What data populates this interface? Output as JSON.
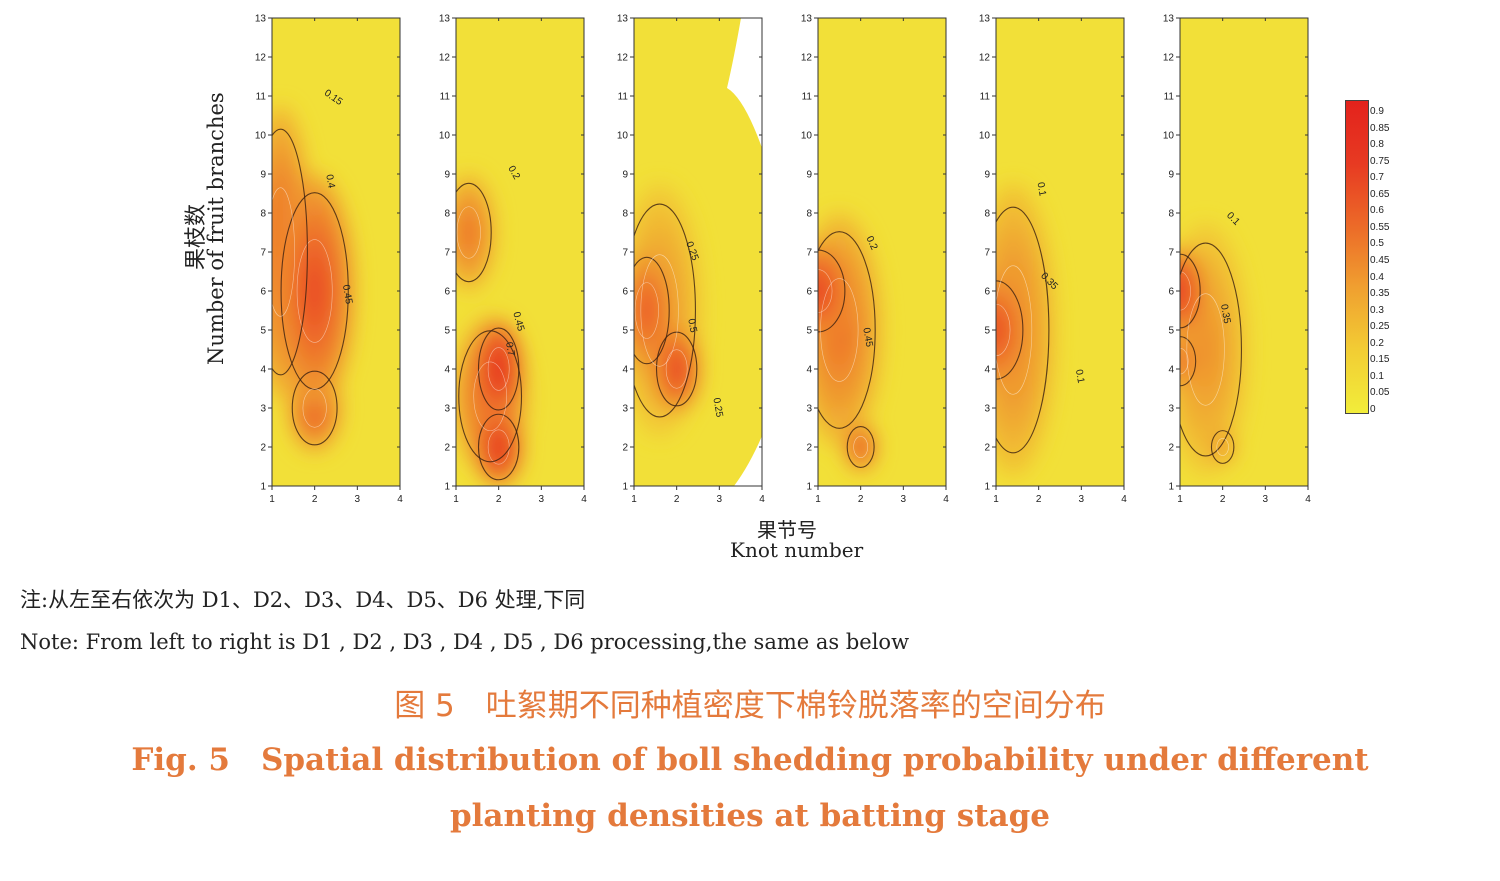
{
  "figure": {
    "y_label_cn": "果枝数",
    "y_label_en": "Number of fruit branches",
    "x_label_cn": "果节号",
    "x_label_en": "Knot number",
    "y_ticks": [
      "1",
      "2",
      "3",
      "4",
      "5",
      "6",
      "7",
      "8",
      "9",
      "10",
      "11",
      "12",
      "13"
    ],
    "x_ticks": [
      "1",
      "2",
      "3",
      "4"
    ],
    "colorbar_ticks": [
      "0.9",
      "0.85",
      "0.8",
      "0.75",
      "0.7",
      "0.65",
      "0.6",
      "0.55",
      "0.5",
      "0.45",
      "0.4",
      "0.35",
      "0.3",
      "0.25",
      "0.2",
      "0.15",
      "0.1",
      "0.05",
      "0"
    ]
  },
  "note_cn": "注:从左至右依次为 D1、D2、D3、D4、D5、D6 处理,下同",
  "note_en": "Note: From left to right is D1 , D2 , D3 , D4 , D5 , D6 processing,the same as below",
  "caption_cn": "图 5　吐絮期不同种植密度下棉铃脱落率的空间分布",
  "caption_en": "Fig. 5　Spatial distribution of boll shedding probability under different planting densities at batting stage",
  "chart_data": {
    "type": "heatmap",
    "xlabel": "果节号 Knot number",
    "ylabel": "果枝数 Number of fruit branches",
    "xlim": [
      1,
      4
    ],
    "ylim": [
      1,
      13
    ],
    "colorscale": {
      "min": 0,
      "max": 0.9,
      "low_color": "#f2ed3a",
      "high_color": "#e3221c"
    },
    "panels": [
      {
        "hotspots": [
          {
            "x": 2.0,
            "y": 6.0,
            "value": 0.55,
            "sx": 0.75,
            "sy": 2.4
          },
          {
            "x": 2.0,
            "y": 3.0,
            "value": 0.5,
            "sx": 0.5,
            "sy": 0.9
          },
          {
            "x": 1.2,
            "y": 7.0,
            "value": 0.45,
            "sx": 0.6,
            "sy": 3.0
          }
        ],
        "contour_labels": [
          {
            "text": "0.15",
            "x": 2.4,
            "y": 10.9,
            "angle": 35
          },
          {
            "text": "0.4",
            "x": 2.3,
            "y": 8.8,
            "angle": 80
          },
          {
            "text": "0.45",
            "x": 2.7,
            "y": 5.9,
            "angle": 80
          }
        ]
      },
      {
        "hotspots": [
          {
            "x": 2.0,
            "y": 4.0,
            "value": 0.75,
            "sx": 0.45,
            "sy": 1.0
          },
          {
            "x": 2.0,
            "y": 2.0,
            "value": 0.7,
            "sx": 0.45,
            "sy": 0.8
          },
          {
            "x": 1.3,
            "y": 7.5,
            "value": 0.4,
            "sx": 0.5,
            "sy": 1.2
          },
          {
            "x": 1.8,
            "y": 3.3,
            "value": 0.45,
            "sx": 0.7,
            "sy": 1.6
          }
        ],
        "contour_labels": [
          {
            "text": "0.2",
            "x": 2.3,
            "y": 9.0,
            "angle": 60
          },
          {
            "text": "0.45",
            "x": 2.4,
            "y": 5.2,
            "angle": 75
          },
          {
            "text": "0.7",
            "x": 2.2,
            "y": 4.5,
            "angle": 80
          }
        ]
      },
      {
        "hotspots": [
          {
            "x": 2.0,
            "y": 4.0,
            "value": 0.6,
            "sx": 0.45,
            "sy": 0.9
          },
          {
            "x": 1.3,
            "y": 5.5,
            "value": 0.5,
            "sx": 0.5,
            "sy": 1.3
          },
          {
            "x": 1.6,
            "y": 5.5,
            "value": 0.3,
            "sx": 0.8,
            "sy": 2.6
          }
        ],
        "blank_regions": "upper-right and lower-right corners",
        "contour_labels": [
          {
            "text": "0.25",
            "x": 2.3,
            "y": 7.0,
            "angle": 70
          },
          {
            "text": "0.5",
            "x": 2.3,
            "y": 5.1,
            "angle": 80
          },
          {
            "text": "0.25",
            "x": 2.9,
            "y": 3.0,
            "angle": 80
          }
        ]
      },
      {
        "hotspots": [
          {
            "x": 1.0,
            "y": 6.0,
            "value": 0.6,
            "sx": 0.6,
            "sy": 1.0
          },
          {
            "x": 1.5,
            "y": 5.0,
            "value": 0.4,
            "sx": 0.8,
            "sy": 2.4
          },
          {
            "x": 2.0,
            "y": 2.0,
            "value": 0.55,
            "sx": 0.3,
            "sy": 0.5
          }
        ],
        "contour_labels": [
          {
            "text": "0.2",
            "x": 2.2,
            "y": 7.2,
            "angle": 65
          },
          {
            "text": "0.45",
            "x": 2.1,
            "y": 4.8,
            "angle": 80
          }
        ]
      },
      {
        "hotspots": [
          {
            "x": 1.0,
            "y": 5.0,
            "value": 0.55,
            "sx": 0.6,
            "sy": 1.2
          },
          {
            "x": 1.4,
            "y": 5.0,
            "value": 0.35,
            "sx": 0.8,
            "sy": 3.0
          }
        ],
        "contour_labels": [
          {
            "text": "0.1",
            "x": 2.0,
            "y": 8.6,
            "angle": 80
          },
          {
            "text": "0.35",
            "x": 2.2,
            "y": 6.2,
            "angle": 45
          },
          {
            "text": "0.1",
            "x": 2.9,
            "y": 3.8,
            "angle": 80
          }
        ]
      },
      {
        "hotspots": [
          {
            "x": 1.0,
            "y": 6.0,
            "value": 0.65,
            "sx": 0.45,
            "sy": 0.9
          },
          {
            "x": 1.0,
            "y": 4.2,
            "value": 0.45,
            "sx": 0.35,
            "sy": 0.6
          },
          {
            "x": 1.6,
            "y": 4.5,
            "value": 0.3,
            "sx": 0.8,
            "sy": 2.6
          },
          {
            "x": 2.0,
            "y": 2.0,
            "value": 0.35,
            "sx": 0.25,
            "sy": 0.4
          }
        ],
        "contour_labels": [
          {
            "text": "0.1",
            "x": 2.2,
            "y": 7.8,
            "angle": 45
          },
          {
            "text": "0.35",
            "x": 2.0,
            "y": 5.4,
            "angle": 80
          }
        ]
      }
    ]
  }
}
